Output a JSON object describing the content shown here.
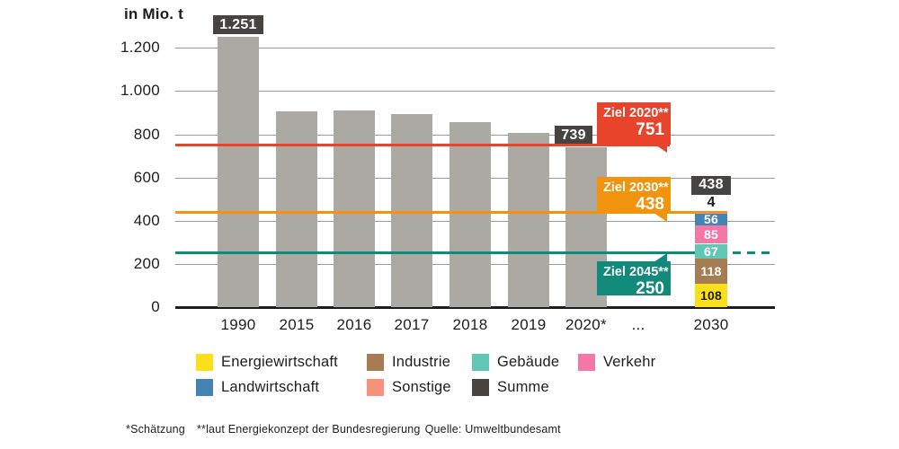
{
  "chart_data": {
    "type": "bar",
    "unit_label": "in Mio. t",
    "ylim": [
      0,
      1300
    ],
    "grid": true,
    "y_ticks": [
      {
        "label": "0",
        "value": 0
      },
      {
        "label": "200",
        "value": 200
      },
      {
        "label": "400",
        "value": 400
      },
      {
        "label": "600",
        "value": 600
      },
      {
        "label": "800",
        "value": 800
      },
      {
        "label": "1.000",
        "value": 1000
      },
      {
        "label": "1.200",
        "value": 1200
      }
    ],
    "categories": [
      "1990",
      "2015",
      "2016",
      "2017",
      "2018",
      "2019",
      "2020*",
      "...",
      "2030"
    ],
    "bars": [
      {
        "category": "1990",
        "value": 1251,
        "badge": "1.251"
      },
      {
        "category": "2015",
        "value": 905
      },
      {
        "category": "2016",
        "value": 909
      },
      {
        "category": "2017",
        "value": 893
      },
      {
        "category": "2018",
        "value": 858
      },
      {
        "category": "2019",
        "value": 805
      },
      {
        "category": "2020*",
        "value": 739,
        "badge": "739"
      }
    ],
    "stacked_bar": {
      "category": "2030",
      "total": 438,
      "total_badge": "438",
      "segments_bottom_up": [
        {
          "sector": "Energiewirtschaft",
          "value": 108,
          "label": "108"
        },
        {
          "sector": "Industrie",
          "value": 118,
          "label": "118"
        },
        {
          "sector": "Gebäude",
          "value": 67,
          "label": "67"
        },
        {
          "sector": "Verkehr",
          "value": 85,
          "label": "85"
        },
        {
          "sector": "Landwirtschaft",
          "value": 56,
          "label": "56"
        },
        {
          "sector": "Sonstige",
          "value": 4,
          "label": "4",
          "label_outside": true
        }
      ]
    },
    "target_lines": [
      {
        "id": "ziel2020",
        "label": "Ziel 2020**",
        "value": 751,
        "value_label": "751",
        "color": "#e8432b"
      },
      {
        "id": "ziel2030",
        "label": "Ziel 2030**",
        "value": 438,
        "value_label": "438",
        "color": "#f2930d"
      },
      {
        "id": "ziel2045",
        "label": "Ziel 2045**",
        "value": 250,
        "value_label": "250",
        "color": "#108a7b",
        "dashed_extension": true
      }
    ]
  },
  "sectors": {
    "Energiewirtschaft": {
      "color": "#f9e01b",
      "label_color": "#1d1d1b"
    },
    "Industrie": {
      "color": "#a67c52",
      "label_color": "#ffffff"
    },
    "Gebäude": {
      "color": "#5fc7b4",
      "label_color": "#ffffff"
    },
    "Verkehr": {
      "color": "#f477a5",
      "label_color": "#ffffff"
    },
    "Landwirtschaft": {
      "color": "#4484b4",
      "label_color": "#ffffff"
    },
    "Sonstige": {
      "color": "#f7937d",
      "label_color": "#ffffff"
    },
    "Summe": {
      "color": "#474340",
      "label_color": "#ffffff"
    }
  },
  "colors": {
    "bar_gray": "#aca9a5",
    "badge_dark": "#474340",
    "gridline": "#9b9b9b",
    "axis": "#1d1d1b",
    "text": "#1d1d1b"
  },
  "legend": {
    "rows": [
      [
        "Energiewirtschaft",
        "Industrie",
        "Gebäude",
        "Verkehr"
      ],
      [
        "Landwirtschaft",
        "Sonstige",
        "Summe"
      ]
    ]
  },
  "footnote": {
    "estimate_note": "*Schätzung",
    "concept_note": "**laut Energiekonzept der Bundesregierung",
    "source": "Quelle: Umweltbundesamt"
  }
}
